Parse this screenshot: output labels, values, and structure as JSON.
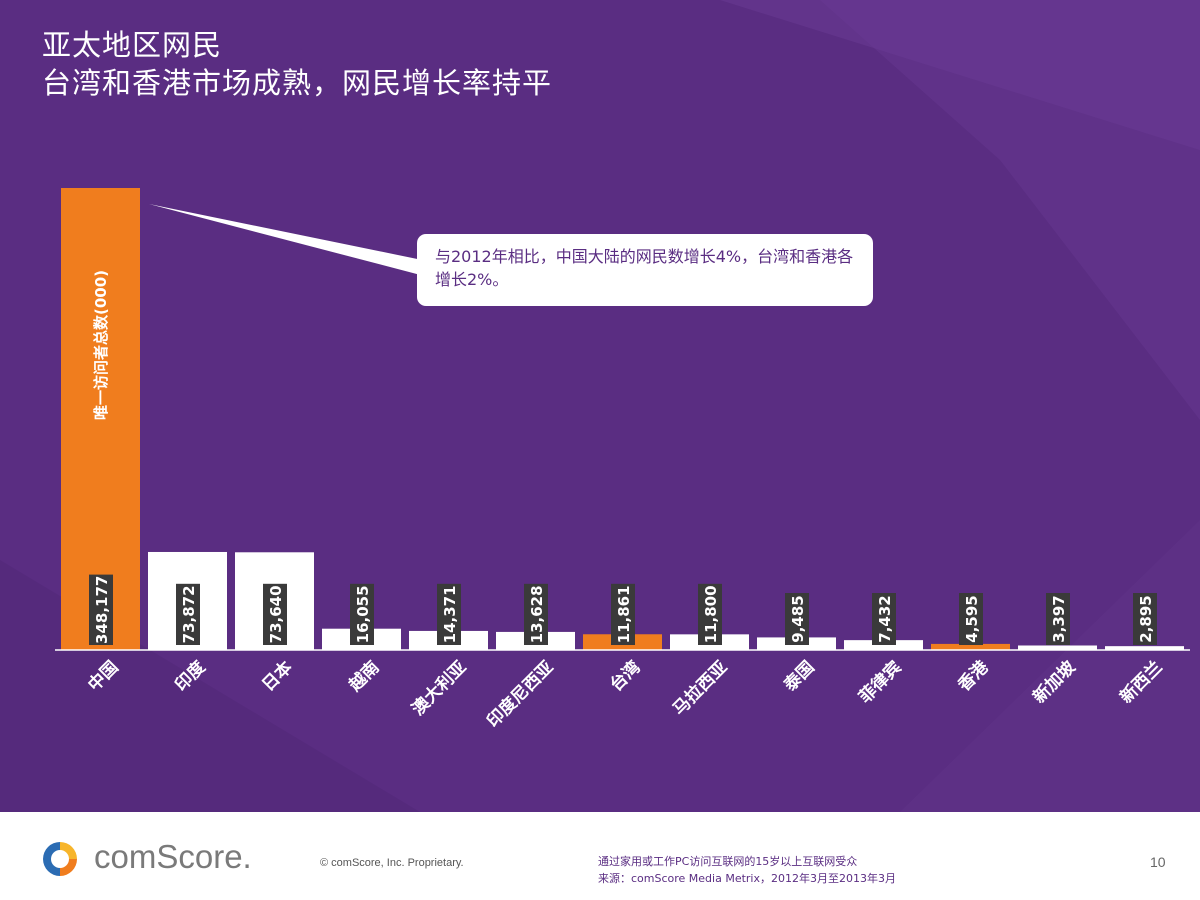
{
  "slide": {
    "title_line1": "亚太地区网民",
    "title_line2": "台湾和香港市场成熟，网民增长率持平"
  },
  "callout": {
    "text": "与2012年相比，中国大陆的网民数增长4%，台湾和香港各增长2%。"
  },
  "footer": {
    "logo_text": "comScore.",
    "copyright": "© comScore, Inc.    Proprietary.",
    "note_line1": "通过家用或工作PC访问互联网的15岁以上互联网受众",
    "note_line2": "来源：comScore Media Metrix，2012年3月至2013年3月",
    "page_number": "10"
  },
  "colors": {
    "background": "#5a2d82",
    "highlight_bar": "#f07d1e",
    "normal_bar": "#ffffff",
    "value_label_bg": "#3a3a3a"
  },
  "chart_data": {
    "type": "bar",
    "title": "",
    "ylabel": "唯一访问者总数(000)",
    "xlabel": "",
    "ylim": [
      0,
      348177
    ],
    "categories": [
      "中国",
      "印度",
      "日本",
      "越南",
      "澳大利亚",
      "印度尼西亚",
      "台湾",
      "马拉西亚",
      "泰国",
      "菲律宾",
      "香港",
      "新加坡",
      "新西兰"
    ],
    "values": [
      348177,
      73872,
      73640,
      16055,
      14371,
      13628,
      11861,
      11800,
      9485,
      7432,
      4595,
      3397,
      2895
    ],
    "value_labels": [
      "348,177",
      "73,872",
      "73,640",
      "16,055",
      "14,371",
      "13,628",
      "11,861",
      "11,800",
      "9,485",
      "7,432",
      "4,595",
      "3,397",
      "2,895"
    ],
    "highlighted": [
      "中国",
      "台湾",
      "香港"
    ]
  }
}
